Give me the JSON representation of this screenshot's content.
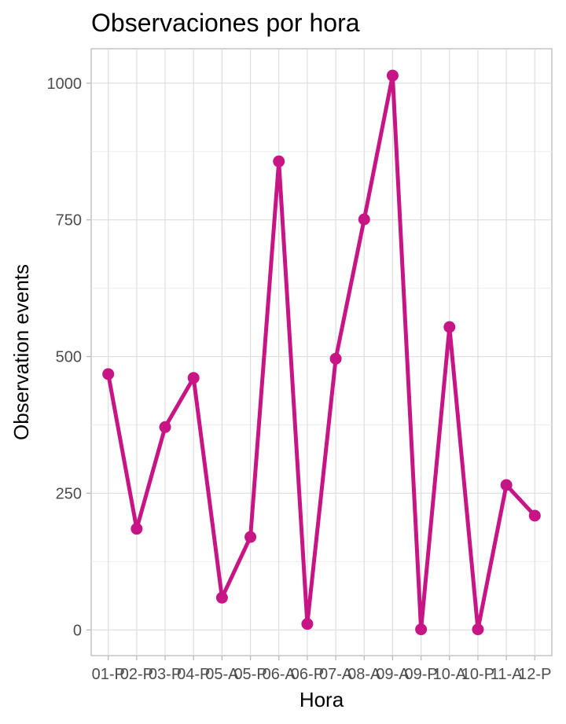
{
  "chart_data": {
    "type": "line",
    "title": "Observaciones por hora",
    "xlabel": "Hora",
    "ylabel": "Observation events",
    "categories": [
      "01-P",
      "02-P",
      "03-P",
      "04-P",
      "05-A",
      "05-P",
      "06-A",
      "06-P",
      "07-A",
      "08-A",
      "09-A",
      "09-P",
      "10-A",
      "10-P",
      "11-A",
      "12-P"
    ],
    "series": [
      {
        "values": [
          468,
          185,
          371,
          461,
          59,
          170,
          857,
          11,
          496,
          751,
          1014,
          1,
          554,
          1,
          265,
          209
        ]
      }
    ],
    "ylim": [
      -47,
      1063
    ],
    "yticks": [
      0,
      250,
      500,
      750,
      1000
    ],
    "grid": true,
    "color": "#C71585"
  }
}
